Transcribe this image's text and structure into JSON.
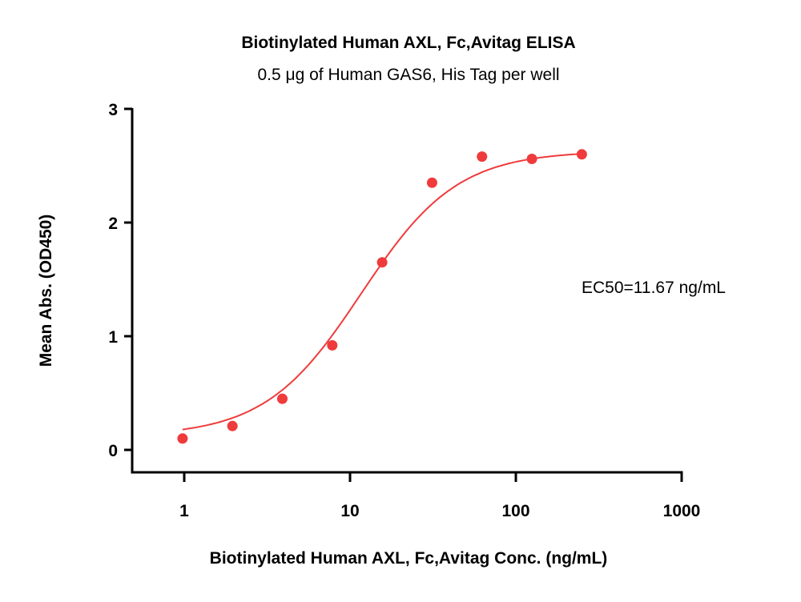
{
  "chart_data": {
    "type": "scatter",
    "title": "Biotinylated Human AXL, Fc,Avitag ELISA",
    "subtitle": "0.5 μg of Human GAS6, His Tag per well",
    "xlabel": "Biotinylated Human AXL, Fc,Avitag Conc. (ng/mL)",
    "ylabel": "Mean Abs. (OD450)",
    "x_scale": "log",
    "xlim": [
      0.5,
      1000
    ],
    "ylim": [
      0,
      3
    ],
    "x_ticks": [
      "1",
      "10",
      "100",
      "1000"
    ],
    "y_ticks": [
      "0",
      "1",
      "2",
      "3"
    ],
    "grid": false,
    "annotation": "EC50=11.67 ng/mL",
    "fit": "4-parameter logistic curve",
    "color": "#ef3b3b",
    "series": [
      {
        "x": [
          0.977,
          1.953,
          3.906,
          7.8125,
          15.625,
          31.25,
          62.5,
          125,
          250
        ],
        "y": [
          0.1,
          0.21,
          0.45,
          0.92,
          1.65,
          2.35,
          2.58,
          2.56,
          2.6
        ]
      }
    ]
  }
}
